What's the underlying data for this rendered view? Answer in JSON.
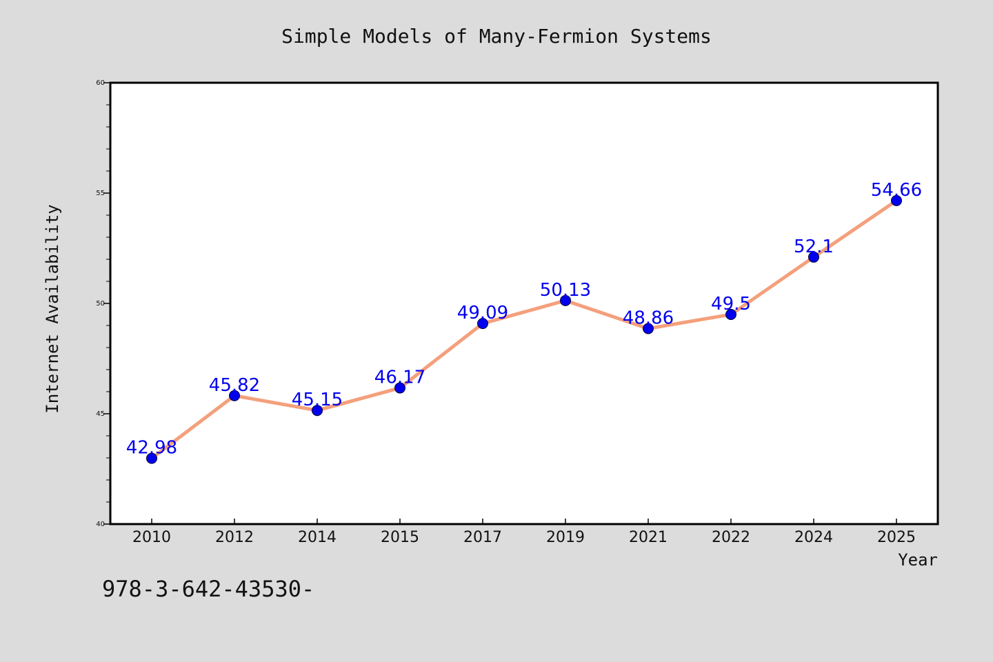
{
  "chart_data": {
    "type": "line",
    "title": "Simple Models of Many-Fermion Systems",
    "xlabel": "Year",
    "ylabel": "Internet Availability",
    "categories": [
      "2010",
      "2012",
      "2014",
      "2015",
      "2017",
      "2019",
      "2021",
      "2022",
      "2024",
      "2025"
    ],
    "series": [
      {
        "values": [
          42.98,
          45.82,
          45.15,
          46.17,
          49.09,
          50.13,
          48.86,
          49.5,
          52.1,
          54.66
        ],
        "labels": [
          "42.98",
          "45.82",
          "45.15",
          "46.17",
          "49.09",
          "50.13",
          "48.86",
          "49.5",
          "52.1",
          "54.66"
        ],
        "line_color": "#f4a07c",
        "marker_color": "#0000ee",
        "label_color": "#0000ee"
      }
    ],
    "ylim": [
      40,
      60
    ],
    "yticks": [
      "40",
      "45",
      "50",
      "55",
      "60"
    ],
    "grid": false,
    "annotation": "978-3-642-43530-"
  }
}
